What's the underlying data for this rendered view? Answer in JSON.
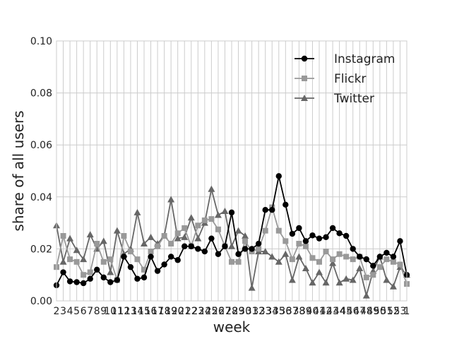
{
  "chart_data": {
    "type": "line",
    "title": "",
    "xlabel": "week",
    "ylabel": "share of all users",
    "ylim": [
      0,
      0.1
    ],
    "yticks": [
      "0.00",
      "0.02",
      "0.04",
      "0.06",
      "0.08",
      "0.10"
    ],
    "yticks_values": [
      0,
      0.02,
      0.04,
      0.06,
      0.08,
      0.1
    ],
    "x": [
      2,
      3,
      4,
      5,
      6,
      7,
      8,
      9,
      10,
      11,
      12,
      13,
      14,
      15,
      16,
      17,
      18,
      19,
      20,
      21,
      22,
      23,
      24,
      25,
      26,
      27,
      28,
      29,
      30,
      31,
      32,
      33,
      34,
      35,
      36,
      37,
      38,
      39,
      40,
      41,
      42,
      43,
      44,
      45,
      46,
      47,
      48,
      49,
      50,
      51,
      52,
      53,
      1
    ],
    "xtick_labels": [
      "2",
      "3",
      "4",
      "5",
      "6",
      "7",
      "8",
      "9",
      "10",
      "11",
      "12",
      "13",
      "14",
      "15",
      "16",
      "17",
      "18",
      "19",
      "20",
      "21",
      "22",
      "23",
      "24",
      "25",
      "26",
      "27",
      "28",
      "29",
      "30",
      "31",
      "32",
      "33",
      "34",
      "35",
      "36",
      "37",
      "38",
      "39",
      "40",
      "41",
      "42",
      "43",
      "44",
      "45",
      "46",
      "47",
      "48",
      "49",
      "50",
      "51",
      "52",
      "53",
      "1"
    ],
    "grid": true,
    "legend_position": "top-right",
    "series": [
      {
        "name": "Instagram",
        "color": "#000000",
        "marker": "circle",
        "values": [
          0.006,
          0.011,
          0.0075,
          0.0072,
          0.0068,
          0.0085,
          0.012,
          0.009,
          0.0072,
          0.008,
          0.017,
          0.013,
          0.0085,
          0.009,
          0.017,
          0.0115,
          0.014,
          0.017,
          0.0157,
          0.021,
          0.021,
          0.02,
          0.019,
          0.024,
          0.018,
          0.021,
          0.034,
          0.018,
          0.02,
          0.02,
          0.022,
          0.035,
          0.035,
          0.048,
          0.037,
          0.0258,
          0.028,
          0.023,
          0.0252,
          0.024,
          0.0245,
          0.028,
          0.026,
          0.025,
          0.02,
          0.017,
          0.016,
          0.0135,
          0.017,
          0.0185,
          0.017,
          0.023,
          0.01
        ]
      },
      {
        "name": "Flickr",
        "color": "#999999",
        "marker": "square",
        "values": [
          0.013,
          0.025,
          0.016,
          0.015,
          0.01,
          0.011,
          0.022,
          0.015,
          0.016,
          0.008,
          0.025,
          0.019,
          0.016,
          0.012,
          0.019,
          0.021,
          0.025,
          0.022,
          0.026,
          0.028,
          0.021,
          0.029,
          0.031,
          0.0315,
          0.0275,
          0.021,
          0.015,
          0.015,
          0.023,
          0.019,
          0.02,
          0.027,
          0.036,
          0.027,
          0.023,
          0.016,
          0.022,
          0.021,
          0.0165,
          0.015,
          0.019,
          0.016,
          0.018,
          0.017,
          0.016,
          0.017,
          0.009,
          0.01,
          0.013,
          0.016,
          0.015,
          0.014,
          0.0065
        ]
      },
      {
        "name": "Twitter",
        "color": "#666666",
        "marker": "triangle",
        "values": [
          0.029,
          0.015,
          0.024,
          0.0195,
          0.016,
          0.0255,
          0.02,
          0.023,
          0.011,
          0.027,
          0.018,
          0.02,
          0.034,
          0.022,
          0.0245,
          0.022,
          0.025,
          0.039,
          0.024,
          0.0245,
          0.032,
          0.024,
          0.03,
          0.043,
          0.033,
          0.0345,
          0.021,
          0.027,
          0.025,
          0.005,
          0.019,
          0.019,
          0.017,
          0.015,
          0.018,
          0.008,
          0.017,
          0.0125,
          0.007,
          0.011,
          0.007,
          0.0145,
          0.007,
          0.0085,
          0.008,
          0.0125,
          0.002,
          0.0115,
          0.017,
          0.008,
          0.0055,
          0.013,
          0.01
        ]
      }
    ]
  }
}
